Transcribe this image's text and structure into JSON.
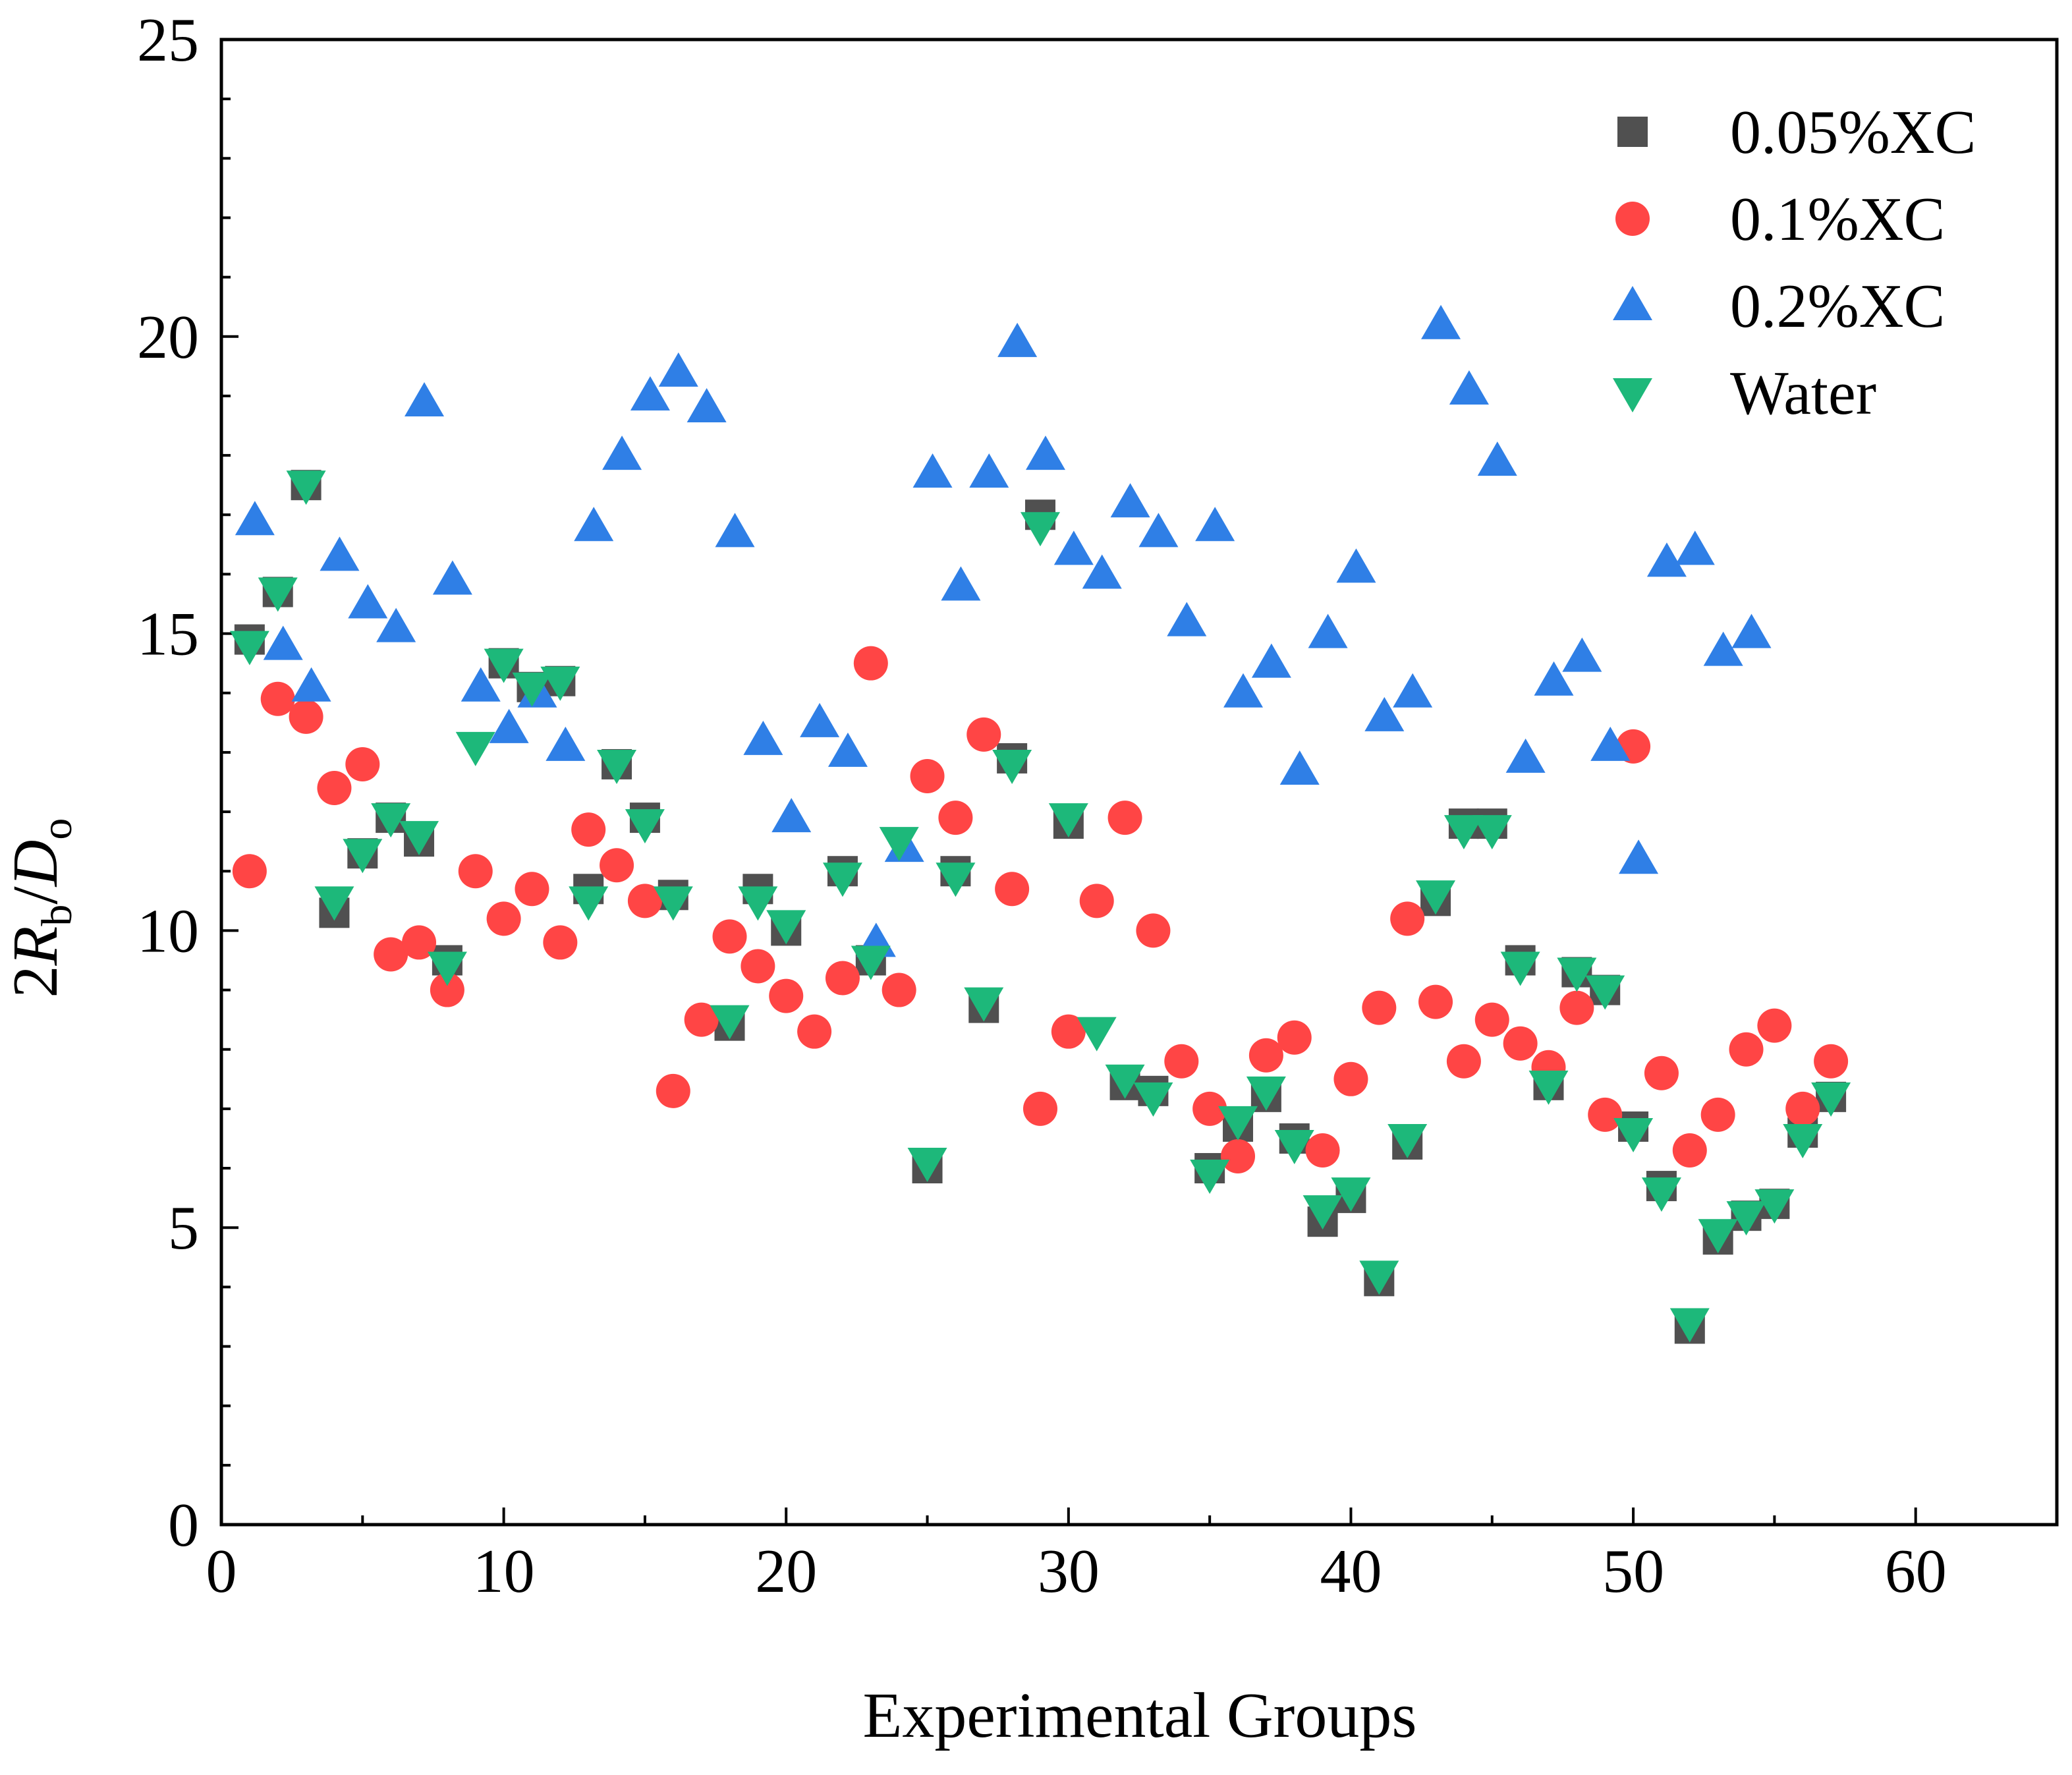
{
  "chart_data": {
    "type": "scatter",
    "xlabel": "Experimental Groups",
    "ylabel": {
      "prefix": "2",
      "R": "R",
      "R_sub": "b",
      "slash": "/",
      "D": "D",
      "D_sub": "o"
    },
    "xlim": [
      0,
      65
    ],
    "ylim": [
      0,
      25
    ],
    "xticks": [
      0,
      10,
      20,
      30,
      40,
      50,
      60
    ],
    "yticks": [
      0,
      5,
      10,
      15,
      20,
      25
    ],
    "legend_position": "top-right",
    "series": [
      {
        "name": "0.05%XC",
        "marker": "square",
        "color": "#505050",
        "x": [
          1,
          2,
          3,
          4,
          5,
          6,
          7,
          8,
          10,
          11,
          12,
          13,
          14,
          15,
          16,
          18,
          19,
          20,
          22,
          23,
          25,
          26,
          27,
          28,
          29,
          30,
          32,
          33,
          35,
          36,
          37,
          38,
          39,
          40,
          41,
          42,
          43,
          44,
          45,
          46,
          47,
          48,
          49,
          50,
          51,
          52,
          53,
          54,
          55,
          56,
          57
        ],
        "y": [
          14.9,
          15.7,
          17.5,
          10.3,
          11.3,
          11.9,
          11.5,
          9.5,
          14.5,
          14.1,
          14.2,
          10.7,
          12.8,
          11.9,
          10.6,
          8.4,
          10.7,
          10.0,
          11.0,
          9.5,
          6.0,
          11.0,
          8.7,
          12.9,
          17.0,
          11.8,
          7.4,
          7.3,
          6.0,
          6.7,
          7.2,
          6.5,
          5.1,
          5.5,
          4.1,
          6.4,
          10.5,
          11.8,
          11.8,
          9.5,
          7.4,
          9.3,
          9.0,
          6.7,
          5.7,
          3.3,
          4.8,
          5.2,
          5.4,
          6.6,
          7.2
        ]
      },
      {
        "name": "0.1%XC",
        "marker": "circle",
        "color": "#ff4545",
        "x": [
          1,
          2,
          3,
          4,
          5,
          6,
          7,
          8,
          9,
          10,
          11,
          12,
          13,
          14,
          15,
          16,
          17,
          18,
          19,
          20,
          21,
          22,
          23,
          24,
          25,
          26,
          27,
          28,
          29,
          30,
          31,
          32,
          33,
          34,
          35,
          36,
          37,
          38,
          39,
          40,
          41,
          42,
          43,
          44,
          45,
          46,
          47,
          48,
          49,
          50,
          51,
          52,
          53,
          54,
          55,
          56,
          57
        ],
        "y": [
          11.0,
          13.9,
          13.6,
          12.4,
          12.8,
          9.6,
          9.8,
          9.0,
          11.0,
          10.2,
          10.7,
          9.8,
          11.7,
          11.1,
          10.5,
          7.3,
          8.5,
          9.9,
          9.4,
          8.9,
          8.3,
          9.2,
          14.5,
          9.0,
          12.6,
          11.9,
          13.3,
          10.7,
          7.0,
          8.3,
          10.5,
          11.9,
          10.0,
          7.8,
          7.0,
          6.2,
          7.9,
          8.2,
          6.3,
          7.5,
          8.7,
          10.2,
          8.8,
          7.8,
          8.5,
          8.1,
          7.7,
          8.7,
          6.9,
          13.1,
          7.6,
          6.3,
          6.9,
          8.0,
          8.4,
          7.0,
          7.8
        ]
      },
      {
        "name": "0.2%XC",
        "marker": "triangle-up",
        "color": "#2f7fe6",
        "x": [
          1,
          2,
          3,
          4,
          5,
          6,
          7,
          8,
          9,
          10,
          11,
          12,
          13,
          14,
          15,
          16,
          17,
          18,
          19,
          20,
          21,
          22,
          23,
          24,
          25,
          26,
          27,
          28,
          29,
          30,
          31,
          32,
          33,
          34,
          35,
          36,
          37,
          38,
          39,
          40,
          41,
          42,
          43,
          44,
          45,
          46,
          47,
          48,
          49,
          50,
          51,
          52,
          53,
          54
        ],
        "y": [
          16.9,
          14.8,
          14.1,
          16.3,
          15.5,
          15.1,
          18.9,
          15.9,
          14.1,
          13.4,
          14.0,
          13.1,
          16.8,
          18.0,
          19.0,
          19.4,
          18.8,
          16.7,
          13.2,
          11.9,
          13.5,
          13.0,
          9.8,
          11.4,
          17.7,
          15.8,
          17.7,
          19.9,
          18.0,
          16.4,
          16.0,
          17.2,
          16.7,
          15.2,
          16.8,
          14.0,
          14.5,
          12.7,
          15.0,
          16.1,
          13.6,
          14.0,
          20.2,
          19.1,
          17.9,
          12.9,
          14.2,
          14.6,
          13.1,
          11.2,
          16.2,
          16.4,
          14.7,
          15.0
        ]
      },
      {
        "name": "Water",
        "marker": "triangle-down",
        "color": "#1db87a",
        "x": [
          1,
          2,
          3,
          4,
          5,
          6,
          7,
          8,
          9,
          10,
          11,
          12,
          13,
          14,
          15,
          16,
          18,
          19,
          20,
          22,
          23,
          24,
          25,
          26,
          27,
          28,
          29,
          30,
          31,
          32,
          33,
          35,
          36,
          37,
          38,
          39,
          40,
          41,
          42,
          43,
          44,
          45,
          46,
          47,
          48,
          49,
          50,
          51,
          52,
          53,
          54,
          55,
          56,
          57
        ],
        "y": [
          14.8,
          15.7,
          17.5,
          10.5,
          11.3,
          11.9,
          11.6,
          9.4,
          13.1,
          14.5,
          14.1,
          14.2,
          10.5,
          12.8,
          11.8,
          10.5,
          8.5,
          10.5,
          10.1,
          10.9,
          9.5,
          11.5,
          6.1,
          10.9,
          8.8,
          12.8,
          16.8,
          11.9,
          8.3,
          7.5,
          7.2,
          5.9,
          6.8,
          7.3,
          6.4,
          5.3,
          5.6,
          4.2,
          6.5,
          10.6,
          11.7,
          11.7,
          9.4,
          7.4,
          9.3,
          9.0,
          6.6,
          5.6,
          3.4,
          4.9,
          5.2,
          5.4,
          6.5,
          7.2
        ]
      }
    ]
  }
}
